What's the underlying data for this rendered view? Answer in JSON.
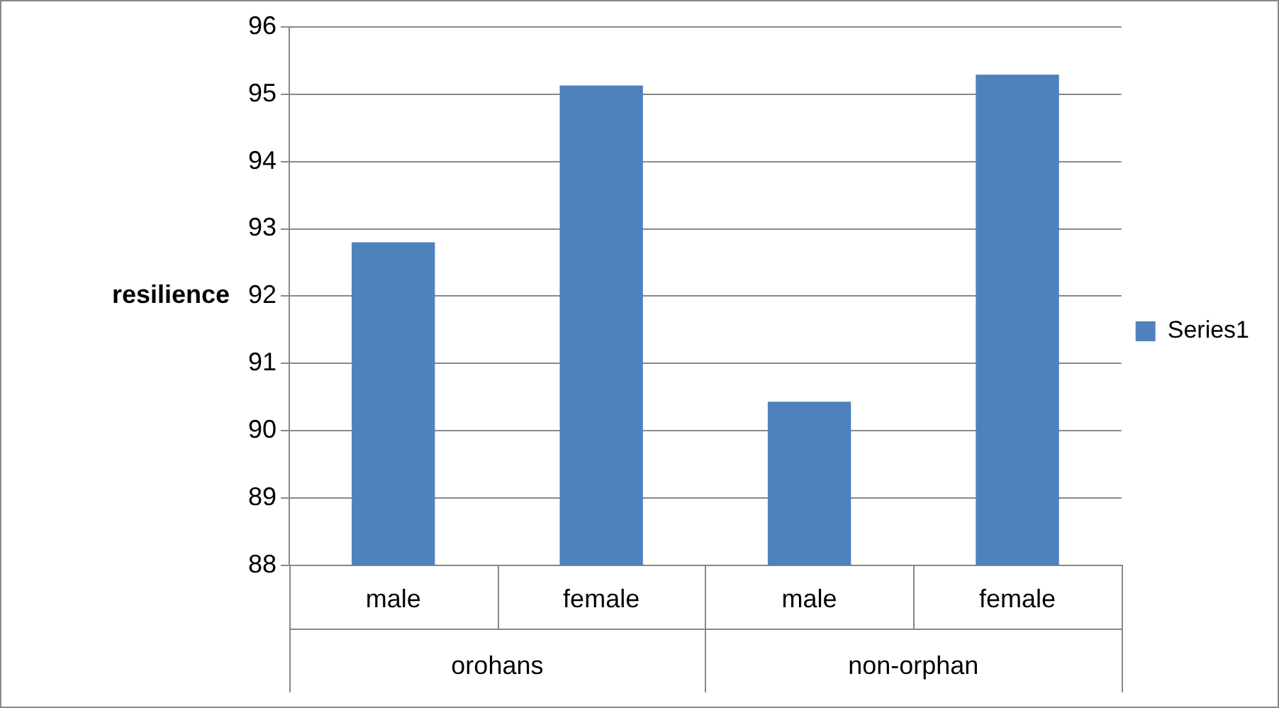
{
  "chart_data": {
    "type": "bar",
    "ylabel": "resilience",
    "categories": [
      "male",
      "female",
      "male",
      "female"
    ],
    "series": [
      {
        "name": "Series1",
        "color": "#4f81bd",
        "values": [
          92.8,
          95.13,
          90.43,
          95.29
        ]
      }
    ],
    "ylim": [
      88,
      96
    ],
    "yticks": [
      88,
      89,
      90,
      91,
      92,
      93,
      94,
      95,
      96
    ],
    "grid": "y",
    "legend": "right",
    "annotations": [
      "orohans",
      "non-orphan"
    ]
  }
}
